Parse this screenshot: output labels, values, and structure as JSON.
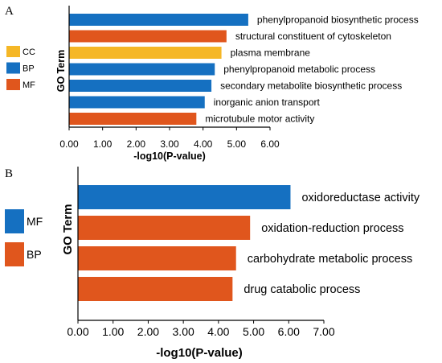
{
  "chart_data": [
    {
      "panel_label": "A",
      "type": "bar",
      "orientation": "horizontal",
      "xlabel": "-log10(P-value)",
      "ylabel": "GO Term",
      "xlim": [
        0,
        6
      ],
      "xticks": [
        "0.00",
        "1.00",
        "2.00",
        "3.00",
        "4.00",
        "5.00",
        "6.00"
      ],
      "legend": {
        "placement": "left",
        "entries": [
          {
            "name": "CC",
            "color": "#f5b726"
          },
          {
            "name": "BP",
            "color": "#1570c1"
          },
          {
            "name": "MF",
            "color": "#e0561d"
          }
        ]
      },
      "bars": [
        {
          "category": "phenylpropanoid biosynthetic process",
          "value": 5.35,
          "group": "BP"
        },
        {
          "category": "structural constituent of cytoskeleton",
          "value": 4.7,
          "group": "MF"
        },
        {
          "category": "plasma membrane",
          "value": 4.55,
          "group": "CC"
        },
        {
          "category": "phenylpropanoid metabolic process",
          "value": 4.35,
          "group": "BP"
        },
        {
          "category": "secondary metabolite biosynthetic process",
          "value": 4.25,
          "group": "BP"
        },
        {
          "category": "inorganic anion transport",
          "value": 4.05,
          "group": "BP"
        },
        {
          "category": "microtubule motor activity",
          "value": 3.8,
          "group": "MF"
        }
      ]
    },
    {
      "panel_label": "B",
      "type": "bar",
      "orientation": "horizontal",
      "xlabel": "-log10(P-value)",
      "ylabel": "GO Term",
      "xlim": [
        0,
        7
      ],
      "xticks": [
        "0.00",
        "1.00",
        "2.00",
        "3.00",
        "4.00",
        "5.00",
        "6.00",
        "7.00"
      ],
      "legend": {
        "placement": "left",
        "entries": [
          {
            "name": "MF",
            "color": "#1570c1"
          },
          {
            "name": "BP",
            "color": "#e0561d"
          }
        ]
      },
      "bars": [
        {
          "category": "oxidoreductase activity",
          "value": 6.05,
          "group": "MF"
        },
        {
          "category": "oxidation-reduction process",
          "value": 4.9,
          "group": "BP"
        },
        {
          "category": "carbohydrate metabolic process",
          "value": 4.5,
          "group": "BP"
        },
        {
          "category": "drug catabolic process",
          "value": 4.4,
          "group": "BP"
        }
      ]
    }
  ]
}
